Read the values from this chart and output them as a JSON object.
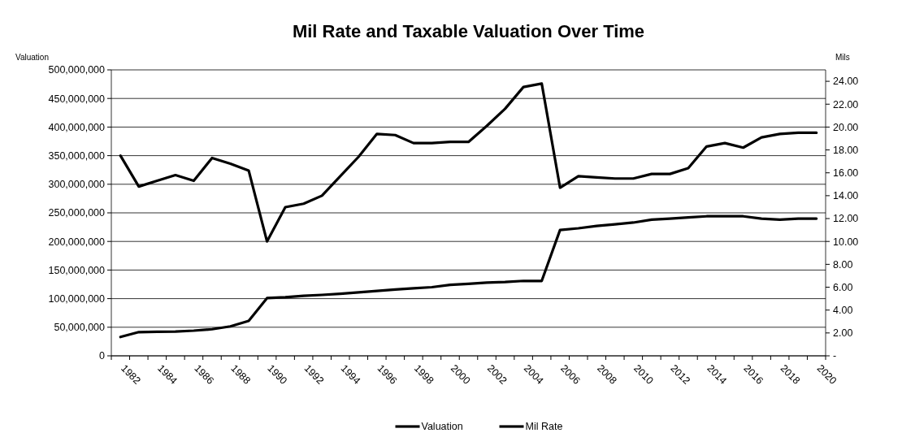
{
  "chart_data": {
    "type": "line",
    "title": "Mil Rate and Taxable Valuation Over Time",
    "ylabel": "Valuation",
    "y2label": "Mils",
    "categories": [
      "1982",
      null,
      "1984",
      null,
      "1986",
      null,
      "1988",
      null,
      "1990",
      null,
      "1992",
      null,
      "1994",
      null,
      "1996",
      null,
      "1998",
      null,
      "2000",
      null,
      "2002",
      null,
      "2004",
      null,
      "2006",
      null,
      "2008",
      null,
      "2010",
      null,
      "2012",
      null,
      "2014",
      null,
      "2016",
      null,
      "2018",
      null,
      "2020"
    ],
    "series": [
      {
        "name": "Valuation",
        "color": "#000000",
        "values": [
          33000000,
          41500000,
          42000000,
          42500000,
          44000000,
          46500000,
          51500000,
          61000000,
          101000000,
          102500000,
          105000000,
          106500000,
          108500000,
          111000000,
          113500000,
          116000000,
          118000000,
          120000000,
          124000000,
          126000000,
          128000000,
          129000000,
          131000000,
          131000000,
          220000000,
          223000000,
          227000000,
          230000000,
          233000000,
          238000000,
          240000000,
          242000000,
          244000000,
          244000000,
          244000000,
          240000000,
          238000000,
          240000000,
          240000000
        ]
      },
      {
        "name": "Mil Rate",
        "color": "#000000",
        "axis": "y2",
        "values": [
          17.5,
          14.8,
          15.3,
          15.8,
          15.3,
          17.3,
          16.8,
          16.2,
          10.0,
          13.0,
          13.3,
          14.0,
          15.7,
          17.4,
          19.4,
          19.3,
          18.6,
          18.6,
          18.7,
          18.7,
          20.1,
          21.6,
          23.5,
          23.8,
          14.7,
          15.7,
          15.6,
          15.5,
          15.5,
          15.9,
          15.9,
          16.4,
          18.3,
          18.6,
          18.2,
          19.1,
          19.4,
          19.5,
          19.5
        ]
      }
    ],
    "ylim": [
      0,
      500000000
    ],
    "yticks": [
      {
        "value": 0,
        "label": "0"
      },
      {
        "value": 50000000,
        "label": "50,000,000"
      },
      {
        "value": 100000000,
        "label": "100,000,000"
      },
      {
        "value": 150000000,
        "label": "150,000,000"
      },
      {
        "value": 200000000,
        "label": "200,000,000"
      },
      {
        "value": 250000000,
        "label": "250,000,000"
      },
      {
        "value": 300000000,
        "label": "300,000,000"
      },
      {
        "value": 350000000,
        "label": "350,000,000"
      },
      {
        "value": 400000000,
        "label": "400,000,000"
      },
      {
        "value": 450000000,
        "label": "450,000,000"
      },
      {
        "value": 500000000,
        "label": "500,000,000"
      }
    ],
    "y2lim": [
      0,
      25
    ],
    "y2ticks": [
      {
        "value": 0,
        "label": "-"
      },
      {
        "value": 2,
        "label": "2.00"
      },
      {
        "value": 4,
        "label": "4.00"
      },
      {
        "value": 6,
        "label": "6.00"
      },
      {
        "value": 8,
        "label": "8.00"
      },
      {
        "value": 10,
        "label": "10.00"
      },
      {
        "value": 12,
        "label": "12.00"
      },
      {
        "value": 14,
        "label": "14.00"
      },
      {
        "value": 16,
        "label": "16.00"
      },
      {
        "value": 18,
        "label": "18.00"
      },
      {
        "value": 20,
        "label": "20.00"
      },
      {
        "value": 22,
        "label": "22.00"
      },
      {
        "value": 24,
        "label": "24.00"
      }
    ],
    "grid": "y",
    "legend": "bottom",
    "marker": "none",
    "line_style": "solid"
  }
}
